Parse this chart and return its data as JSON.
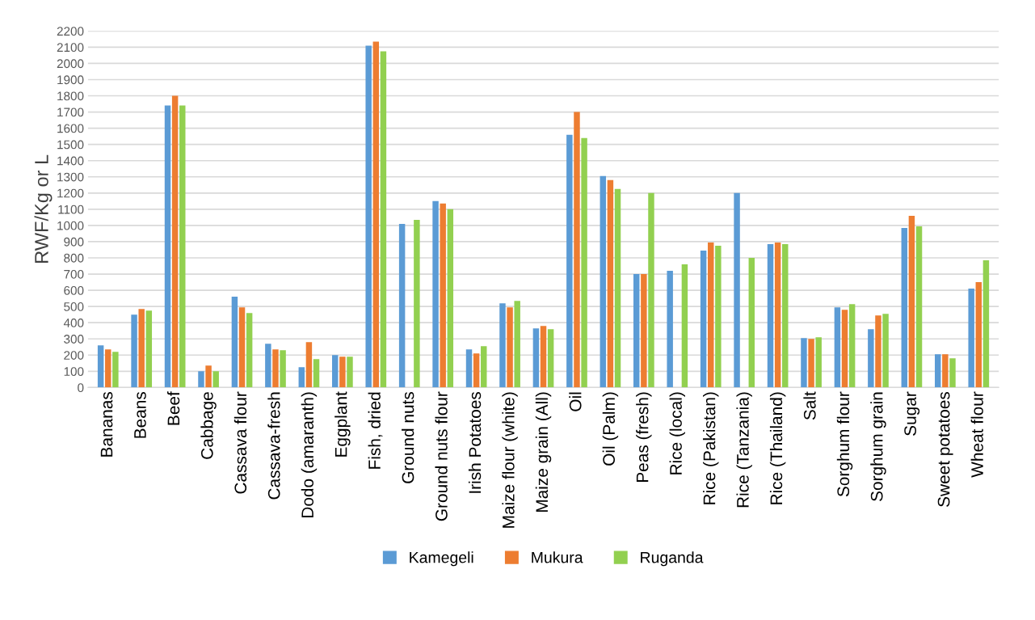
{
  "chart_data": {
    "type": "bar",
    "ylabel": "RWF/Kg or L",
    "categories": [
      "Bananas",
      "Beans",
      "Beef",
      "Cabbage",
      "Cassava flour",
      "Cassava-fresh",
      "Dodo (amaranth)",
      "Eggplant",
      "Fish, dried",
      "Ground nuts",
      "Ground nuts flour",
      "Irish Potatoes",
      "Maize flour (white)",
      "Maize grain (All)",
      "Oil",
      "Oil (Palm)",
      "Peas (fresh)",
      "Rice (local)",
      "Rice (Pakistan)",
      "Rice (Tanzania)",
      "Rice (Thailand)",
      "Salt",
      "Sorghum flour",
      "Sorghum grain",
      "Sugar",
      "Sweet potatoes",
      "Wheat flour"
    ],
    "series": [
      {
        "name": "Kamegeli",
        "color": "#5b9bd5",
        "values": [
          260,
          450,
          1740,
          100,
          560,
          270,
          125,
          200,
          2110,
          1010,
          1150,
          235,
          520,
          365,
          1560,
          1305,
          700,
          720,
          845,
          1200,
          885,
          305,
          495,
          360,
          985,
          205,
          610
        ]
      },
      {
        "name": "Mukura",
        "color": "#ed7d31",
        "values": [
          235,
          485,
          1800,
          135,
          495,
          235,
          280,
          190,
          2135,
          null,
          1135,
          210,
          495,
          380,
          1700,
          1280,
          700,
          null,
          895,
          null,
          895,
          300,
          480,
          445,
          1060,
          205,
          650
        ]
      },
      {
        "name": "Ruganda",
        "color": "#92d050",
        "values": [
          220,
          475,
          1740,
          100,
          460,
          230,
          175,
          190,
          2075,
          1035,
          1100,
          255,
          535,
          360,
          1540,
          1225,
          1200,
          760,
          875,
          800,
          885,
          310,
          515,
          455,
          995,
          180,
          785
        ]
      }
    ],
    "ylim": [
      0,
      2200
    ],
    "yticks": [
      0,
      100,
      200,
      300,
      400,
      500,
      600,
      700,
      800,
      900,
      1000,
      1100,
      1200,
      1300,
      1400,
      1500,
      1600,
      1700,
      1800,
      1900,
      2000,
      2100,
      2200
    ],
    "grid": "y",
    "legend": "bottom"
  }
}
